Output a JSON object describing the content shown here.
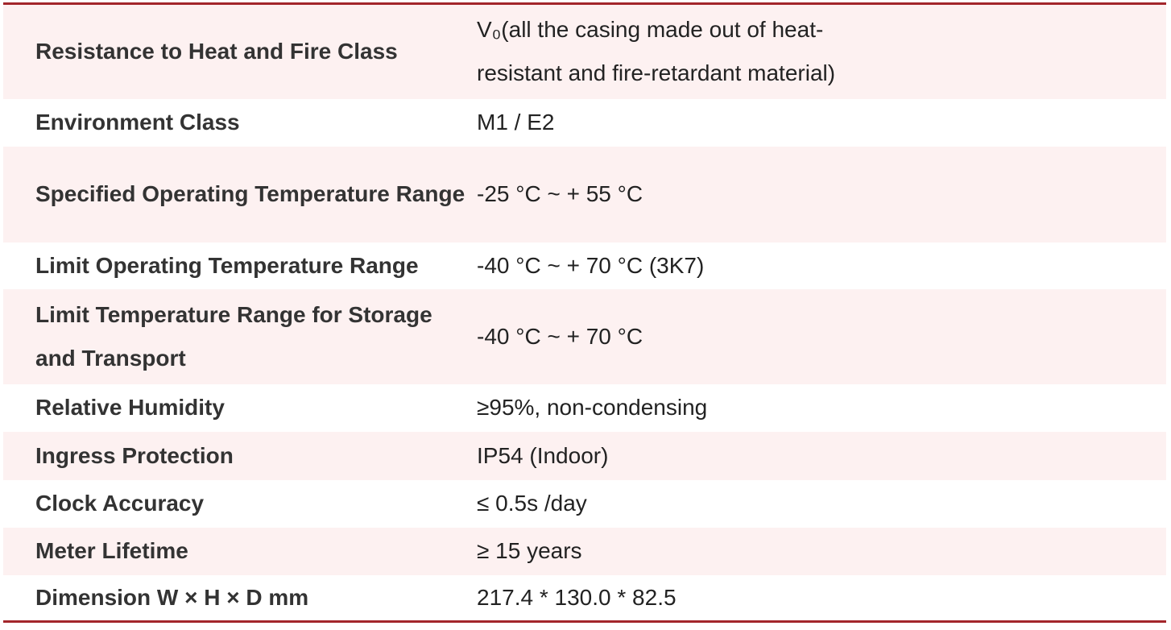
{
  "table": {
    "rows": [
      [
        "Resistance to Heat and Fire Class",
        "V₀(all the casing made out of heat-resistant and fire-retardant material)"
      ],
      [
        "Environment Class",
        "M1 / E2"
      ],
      [
        "Specified Operating Temperature Range",
        "-25 °C ~ + 55 °C"
      ],
      [
        "Limit Operating Temperature Range",
        "-40 °C ~ + 70 °C (3K7)"
      ],
      [
        "Limit Temperature Range for Storage and Transport",
        "-40 °C ~ + 70 °C"
      ],
      [
        "Relative Humidity",
        "≥95%, non-condensing"
      ],
      [
        "Ingress Protection",
        "IP54 (Indoor)"
      ],
      [
        "Clock Accuracy",
        "≤ 0.5s /day"
      ],
      [
        "Meter Lifetime",
        "≥ 15 years"
      ],
      [
        "Dimension W × H × D mm",
        "217.4 * 130.0 * 82.5"
      ]
    ]
  }
}
